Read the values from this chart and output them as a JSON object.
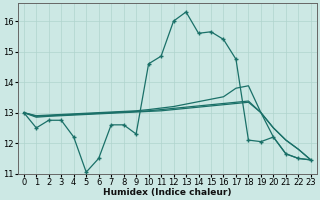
{
  "xlabel": "Humidex (Indice chaleur)",
  "background_color": "#cce8e4",
  "line_color": "#1a7068",
  "grid_color": "#b0d4ce",
  "xlim": [
    -0.5,
    23.5
  ],
  "ylim": [
    11.0,
    16.6
  ],
  "yticks": [
    11,
    12,
    13,
    14,
    15,
    16
  ],
  "xticks": [
    0,
    1,
    2,
    3,
    4,
    5,
    6,
    7,
    8,
    9,
    10,
    11,
    12,
    13,
    14,
    15,
    16,
    17,
    18,
    19,
    20,
    21,
    22,
    23
  ],
  "curve1_x": [
    0,
    1,
    2,
    3,
    4,
    5,
    6,
    7,
    8,
    9,
    10,
    11,
    12,
    13,
    14,
    15,
    16,
    17,
    18,
    19,
    20,
    21,
    22,
    23
  ],
  "curve1_y": [
    13.0,
    12.5,
    12.75,
    12.75,
    12.2,
    11.05,
    11.5,
    12.6,
    12.6,
    12.3,
    14.6,
    14.85,
    16.0,
    16.3,
    15.6,
    15.65,
    15.4,
    14.75,
    12.1,
    12.05,
    12.2,
    11.65,
    11.5,
    11.45
  ],
  "curve2_x": [
    0,
    1,
    2,
    3,
    4,
    5,
    6,
    7,
    8,
    9,
    10,
    11,
    12,
    13,
    14,
    15,
    16,
    17,
    18,
    19,
    20,
    21,
    22,
    23
  ],
  "curve2_y": [
    13.0,
    12.9,
    12.92,
    12.94,
    12.96,
    12.98,
    13.0,
    13.02,
    13.04,
    13.06,
    13.1,
    13.15,
    13.2,
    13.28,
    13.36,
    13.44,
    13.52,
    13.8,
    13.88,
    13.0,
    12.2,
    11.65,
    11.5,
    11.45
  ],
  "curve3_x": [
    0,
    1,
    2,
    3,
    4,
    5,
    6,
    7,
    8,
    9,
    10,
    11,
    12,
    13,
    14,
    15,
    16,
    17,
    18,
    19,
    20,
    21,
    22,
    23
  ],
  "curve3_y": [
    13.0,
    12.88,
    12.9,
    12.92,
    12.94,
    12.96,
    12.98,
    13.0,
    13.02,
    13.04,
    13.06,
    13.1,
    13.14,
    13.18,
    13.22,
    13.26,
    13.3,
    13.34,
    13.38,
    13.0,
    12.5,
    12.1,
    11.8,
    11.45
  ],
  "curve4_x": [
    0,
    1,
    2,
    3,
    4,
    5,
    6,
    7,
    8,
    9,
    10,
    11,
    12,
    13,
    14,
    15,
    16,
    17,
    18,
    19,
    20,
    21,
    22,
    23
  ],
  "curve4_y": [
    13.0,
    12.85,
    12.88,
    12.9,
    12.92,
    12.94,
    12.96,
    12.98,
    13.0,
    13.02,
    13.04,
    13.06,
    13.1,
    13.14,
    13.18,
    13.22,
    13.26,
    13.3,
    13.34,
    13.0,
    12.5,
    12.1,
    11.8,
    11.45
  ]
}
